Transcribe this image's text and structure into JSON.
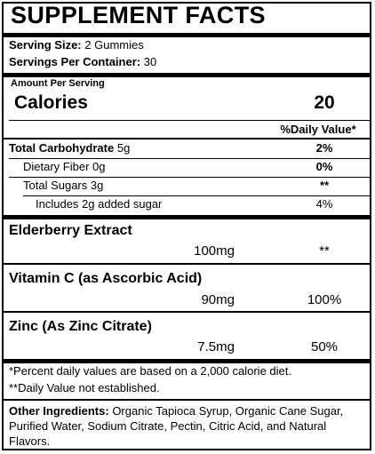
{
  "title": "SUPPLEMENT FACTS",
  "serving": {
    "size_label": "Serving Size:",
    "size_value": "2 Gummies",
    "per_container_label": "Servings Per Container:",
    "per_container_value": "30"
  },
  "amount_per_serving": "Amount Per Serving",
  "calories": {
    "label": "Calories",
    "value": "20"
  },
  "daily_value_header": "%Daily Value*",
  "nutrients": [
    {
      "label": "Total Carbohydrate",
      "amount": "5g",
      "dv": "2%"
    },
    {
      "label": "Dietary Fiber",
      "amount": "0g",
      "dv": "0%"
    },
    {
      "label": "Total Sugars",
      "amount": "3g",
      "dv": "**"
    },
    {
      "label": "Includes 2g added sugar",
      "amount": "",
      "dv": "4%"
    }
  ],
  "ingredients": [
    {
      "name": "Elderberry Extract",
      "amount": "100mg",
      "dv": "**"
    },
    {
      "name": "Vitamin C (as Ascorbic Acid)",
      "amount": "90mg",
      "dv": "100%"
    },
    {
      "name": "Zinc (As Zinc Citrate)",
      "amount": "7.5mg",
      "dv": "50%"
    }
  ],
  "footnotes": [
    "*Percent daily values are based on a 2,000 calorie diet.",
    "**Daily Value not established."
  ],
  "other_ingredients": {
    "label": "Other Ingredients:",
    "text": "Organic Tapioca Syrup, Organic Cane Sugar, Purified Water, Sodium Citrate, Pectin, Citric Acid, and Natural Flavors."
  }
}
